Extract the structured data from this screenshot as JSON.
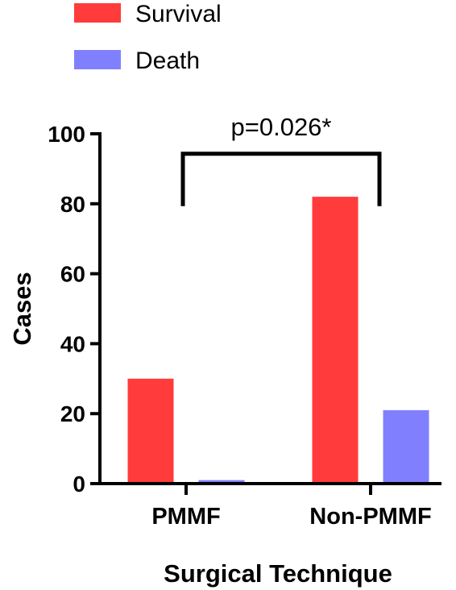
{
  "chart_data": {
    "type": "bar",
    "categories": [
      "PMMF",
      "Non-PMMF"
    ],
    "series": [
      {
        "name": "Survival",
        "color": "#ff3b3b",
        "values": [
          30,
          82
        ]
      },
      {
        "name": "Death",
        "color": "#8080ff",
        "values": [
          1,
          21
        ]
      }
    ],
    "xlabel": "Surgical Technique",
    "ylabel": "Cases",
    "ylim": [
      0,
      100
    ],
    "yticks": [
      0,
      20,
      40,
      60,
      80,
      100
    ],
    "legend_placement": "top-left",
    "grid": false,
    "annotation": {
      "text": "p=0.026*",
      "from_category": "PMMF",
      "to_category": "Non-PMMF",
      "bracket_level": 95
    }
  }
}
